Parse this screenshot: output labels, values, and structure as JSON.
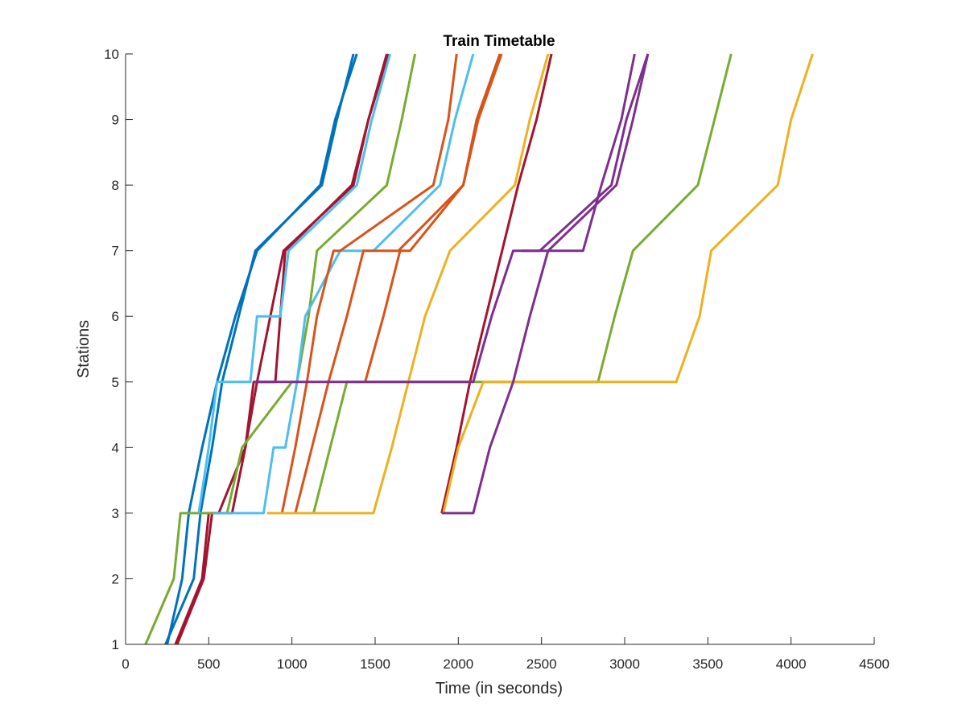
{
  "chart_data": {
    "type": "line",
    "title": "Train Timetable",
    "xlabel": "Time (in seconds)",
    "ylabel": "Stations",
    "xlim": [
      0,
      4500
    ],
    "ylim": [
      1,
      10
    ],
    "xticks": [
      0,
      500,
      1000,
      1500,
      2000,
      2500,
      3000,
      3500,
      4000,
      4500
    ],
    "yticks": [
      1,
      2,
      3,
      4,
      5,
      6,
      7,
      8,
      9,
      10
    ],
    "grid": false,
    "legend": "none",
    "series": [
      {
        "color": "#0072BD",
        "x": [
          240,
          410,
          450,
          520,
          580,
          680,
          780,
          1180,
          1270,
          1370
        ],
        "y": [
          1,
          2,
          3,
          4,
          5,
          6,
          7,
          8,
          9,
          10
        ]
      },
      {
        "color": "#0072BD",
        "x": [
          250,
          340,
          380,
          460,
          550,
          660,
          790,
          1170,
          1260,
          1390
        ],
        "y": [
          1,
          2,
          3,
          4,
          5,
          6,
          7,
          8,
          9,
          10
        ]
      },
      {
        "color": "#A2142F",
        "x": [
          310,
          470,
          520,
          580,
          640,
          720,
          770,
          900,
          960,
          1360,
          1460,
          1580
        ],
        "y": [
          1,
          2,
          3,
          3,
          3,
          4,
          5,
          5,
          7,
          8,
          9,
          10
        ]
      },
      {
        "color": "#A2142F",
        "x": [
          300,
          460,
          500,
          560,
          720,
          790,
          950,
          1370,
          1460,
          1570
        ],
        "y": [
          1,
          2,
          3,
          3,
          4,
          5,
          7,
          8,
          9,
          10
        ]
      },
      {
        "color": "#A2142F",
        "x": [
          1900,
          1990,
          2070,
          2360,
          2470,
          2560
        ],
        "y": [
          3,
          4,
          5,
          8,
          9,
          10
        ]
      },
      {
        "color": "#77AC30",
        "x": [
          120,
          290,
          330,
          400,
          610,
          700,
          1000,
          1030,
          1100,
          1150,
          1570,
          1660,
          1740
        ],
        "y": [
          1,
          2,
          3,
          3,
          3,
          4,
          5,
          5,
          6,
          7,
          8,
          9,
          10
        ]
      },
      {
        "color": "#77AC30",
        "x": [
          1130,
          1230,
          1330,
          1640,
          1740,
          1950,
          2840,
          2940,
          3050,
          3440,
          3540,
          3640
        ],
        "y": [
          3,
          4,
          5,
          5,
          5,
          5,
          5,
          6,
          7,
          8,
          9,
          10
        ]
      },
      {
        "color": "#4DBEEE",
        "x": [
          440,
          500,
          550,
          620,
          710,
          750,
          790,
          830,
          880,
          930,
          980,
          1390,
          1480,
          1590
        ],
        "y": [
          3,
          4,
          5,
          5,
          5,
          5,
          6,
          6,
          6,
          6,
          7,
          8,
          9,
          10
        ]
      },
      {
        "color": "#4DBEEE",
        "x": [
          530,
          720,
          830,
          890,
          960,
          1030,
          1080,
          1290,
          1490,
          1890,
          1980,
          2090
        ],
        "y": [
          3,
          3,
          3,
          4,
          4,
          5,
          6,
          7,
          7,
          8,
          9,
          10
        ]
      },
      {
        "color": "#D95319",
        "x": [
          940,
          1020,
          1090,
          1150,
          1250,
          1290,
          1850,
          1940,
          1990
        ],
        "y": [
          3,
          4,
          5,
          6,
          7,
          7,
          8,
          9,
          10
        ]
      },
      {
        "color": "#D95319",
        "x": [
          1020,
          1120,
          1220,
          1330,
          1430,
          1510,
          1640,
          2030,
          2120,
          2260
        ],
        "y": [
          3,
          4,
          5,
          6,
          7,
          7,
          7,
          8,
          9,
          10
        ]
      },
      {
        "color": "#D95319",
        "x": [
          1440,
          1550,
          1650,
          1710,
          2030,
          2110,
          2250
        ],
        "y": [
          5,
          6,
          7,
          7,
          8,
          9,
          10
        ]
      },
      {
        "color": "#EDB120",
        "x": [
          850,
          1490,
          1600,
          1700,
          1800,
          1950,
          2340,
          2430,
          2540
        ],
        "y": [
          3,
          3,
          4,
          5,
          6,
          7,
          8,
          9,
          10
        ]
      },
      {
        "color": "#EDB120",
        "x": [
          1910,
          2000,
          2150,
          2500,
          3310,
          3450,
          3520,
          3920,
          4000,
          4130
        ],
        "y": [
          3,
          4,
          5,
          5,
          5,
          6,
          7,
          8,
          9,
          10
        ]
      },
      {
        "color": "#7E2F8E",
        "x": [
          770,
          1100,
          1300,
          1500,
          2090,
          2200,
          2330,
          2490,
          2920,
          3010,
          3140
        ],
        "y": [
          5,
          5,
          5,
          5,
          5,
          6,
          7,
          7,
          8,
          9,
          10
        ]
      },
      {
        "color": "#7E2F8E",
        "x": [
          1900,
          2090,
          2190,
          2330,
          2430,
          2540,
          2950,
          3050,
          3140
        ],
        "y": [
          3,
          3,
          4,
          5,
          6,
          7,
          8,
          9,
          10
        ]
      },
      {
        "color": "#7E2F8E",
        "x": [
          2380,
          2750,
          2860,
          2980,
          3060
        ],
        "y": [
          7,
          7,
          8,
          9,
          10
        ]
      }
    ]
  }
}
